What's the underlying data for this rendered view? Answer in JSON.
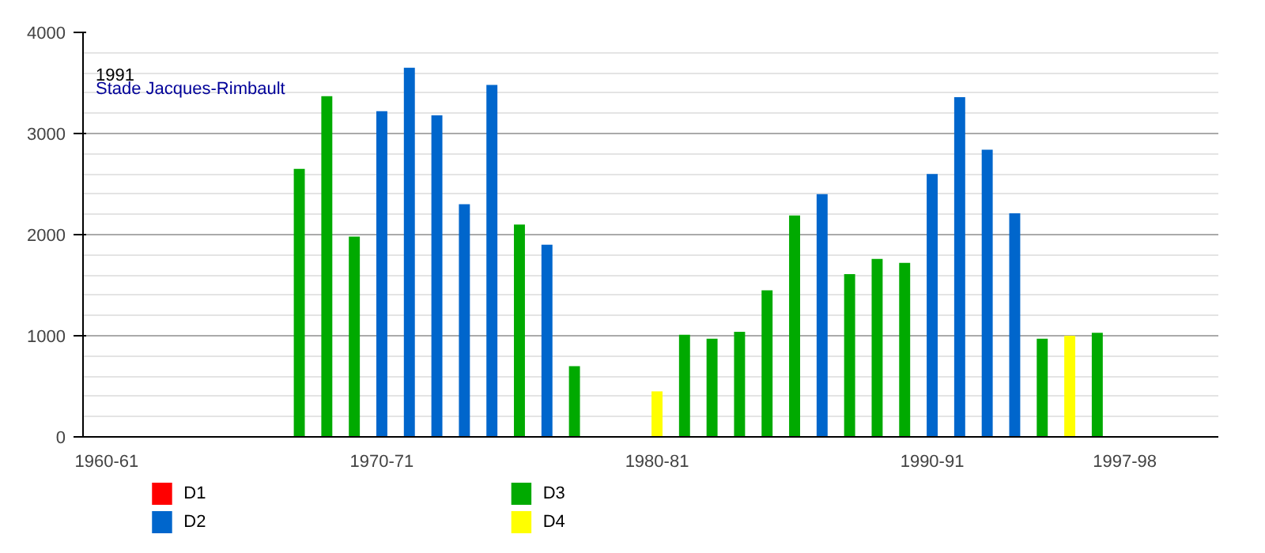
{
  "chart_data": {
    "type": "bar",
    "categories": [
      "1960-61",
      null,
      null,
      null,
      null,
      null,
      null,
      null,
      null,
      null,
      "1970-71",
      null,
      null,
      null,
      null,
      null,
      null,
      null,
      null,
      null,
      "1980-81",
      null,
      null,
      null,
      null,
      null,
      null,
      null,
      null,
      null,
      "1990-91",
      null,
      null,
      null,
      null,
      null,
      null,
      "1997-98"
    ],
    "series": [
      {
        "name": "D1",
        "color": "#ff0000",
        "values": [
          null,
          null,
          null,
          null,
          null,
          null,
          null,
          null,
          null,
          null,
          null,
          null,
          null,
          null,
          null,
          null,
          null,
          null,
          null,
          null,
          null,
          null,
          null,
          null,
          null,
          null,
          null,
          null,
          null,
          null,
          null,
          null,
          null,
          null,
          null,
          null,
          null,
          null
        ]
      },
      {
        "name": "D2",
        "color": "#0066cc",
        "values": [
          null,
          null,
          null,
          null,
          null,
          null,
          null,
          null,
          null,
          null,
          3220,
          3650,
          3180,
          2300,
          3480,
          null,
          1900,
          null,
          null,
          null,
          null,
          null,
          null,
          null,
          null,
          null,
          2400,
          null,
          null,
          null,
          2600,
          3360,
          2840,
          2210,
          null,
          null,
          null,
          null
        ]
      },
      {
        "name": "D3",
        "color": "#00aa00",
        "values": [
          null,
          null,
          null,
          null,
          null,
          null,
          null,
          2650,
          3370,
          1980,
          null,
          null,
          null,
          null,
          null,
          2100,
          null,
          700,
          null,
          null,
          null,
          1010,
          970,
          1040,
          1450,
          2190,
          null,
          1610,
          1760,
          1720,
          null,
          null,
          null,
          null,
          970,
          null,
          1030,
          null
        ]
      },
      {
        "name": "D4",
        "color": "#ffff00",
        "values": [
          null,
          null,
          null,
          null,
          null,
          null,
          null,
          null,
          null,
          null,
          null,
          null,
          null,
          null,
          null,
          null,
          null,
          null,
          null,
          null,
          450,
          null,
          null,
          null,
          null,
          null,
          null,
          null,
          null,
          null,
          null,
          null,
          null,
          null,
          null,
          1000,
          null,
          null
        ]
      }
    ],
    "ylim": [
      0,
      4000
    ],
    "yticks": [
      0,
      1000,
      2000,
      3000,
      4000
    ],
    "grid": "y",
    "legend": "bottom",
    "annotations": [
      "1991",
      "Stade Jacques-Rimbault"
    ]
  }
}
